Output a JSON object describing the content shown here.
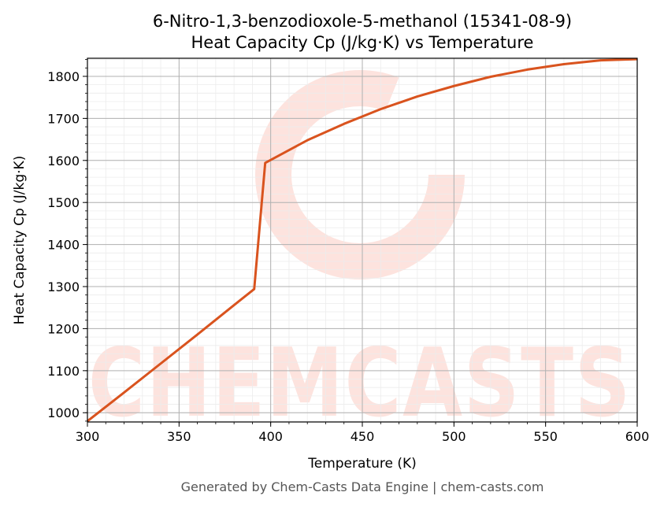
{
  "chart_data": {
    "type": "line",
    "title": "6-Nitro-1,3-benzodioxole-5-methanol (15341-08-9)",
    "subtitle": "Heat Capacity Cp (J/kg·K) vs Temperature",
    "xlabel": "Temperature (K)",
    "ylabel": "Heat Capacity Cp (J/kg·K)",
    "xlim": [
      300,
      600
    ],
    "ylim": [
      978,
      1843
    ],
    "xticks": [
      300,
      350,
      400,
      450,
      500,
      550,
      600
    ],
    "yticks": [
      1000,
      1100,
      1200,
      1300,
      1400,
      1500,
      1600,
      1700,
      1800
    ],
    "grid": true,
    "line_color": "#d9531e",
    "series": [
      {
        "x": [
          300,
          320,
          340,
          360,
          380,
          391,
          397,
          420,
          440,
          460,
          480,
          500,
          520,
          540,
          560,
          580,
          600
        ],
        "values": [
          980,
          1048,
          1117,
          1186,
          1256,
          1294,
          1594,
          1648,
          1687,
          1722,
          1752,
          1777,
          1799,
          1816,
          1829,
          1838,
          1841
        ]
      }
    ]
  },
  "footer": "Generated by Chem-Casts Data Engine | chem-casts.com",
  "watermark": {
    "text": "CHEMCASTS",
    "color": "#fde3de"
  }
}
